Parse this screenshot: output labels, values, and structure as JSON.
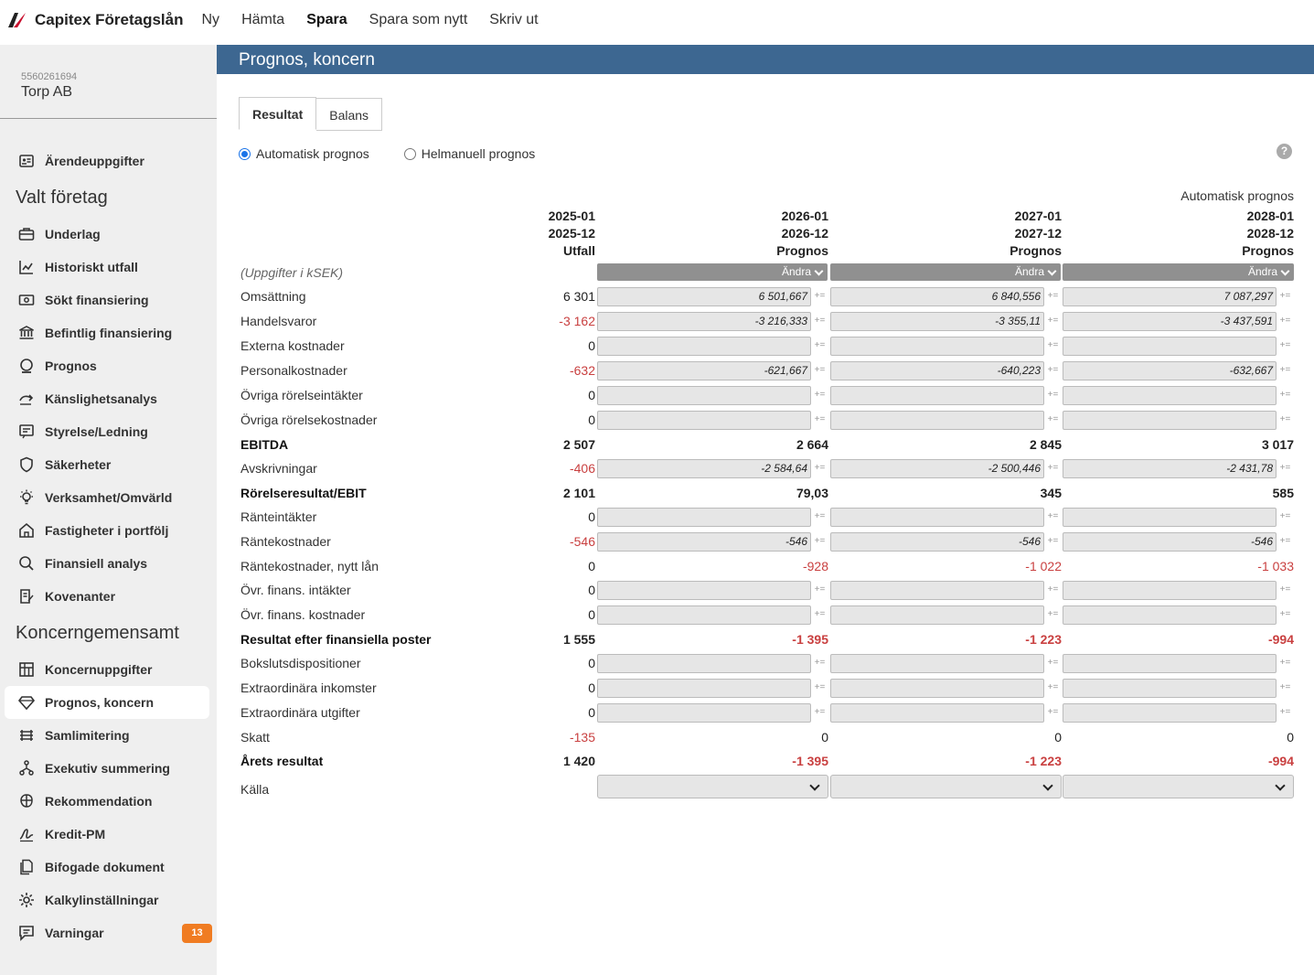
{
  "app": {
    "brand": "Capitex Företagslån",
    "menu": [
      "Ny",
      "Hämta",
      "Spara",
      "Spara som nytt",
      "Skriv ut"
    ]
  },
  "company": {
    "orgnr": "5560261694",
    "name": "Torp AB"
  },
  "sidebar": {
    "first": {
      "label": "Ärendeuppgifter",
      "icon": "id-card-icon"
    },
    "section1": "Valt företag",
    "group1": [
      {
        "label": "Underlag",
        "icon": "briefcase-icon"
      },
      {
        "label": "Historiskt utfall",
        "icon": "chart-icon"
      },
      {
        "label": "Sökt finansiering",
        "icon": "money-icon"
      },
      {
        "label": "Befintlig finansiering",
        "icon": "bank-icon"
      },
      {
        "label": "Prognos",
        "icon": "crystal-ball-icon"
      },
      {
        "label": "Känslighetsanalys",
        "icon": "arrow-icon"
      },
      {
        "label": "Styrelse/Ledning",
        "icon": "board-icon"
      },
      {
        "label": "Säkerheter",
        "icon": "shield-icon"
      },
      {
        "label": "Verksamhet/Omvärld",
        "icon": "bulb-icon"
      },
      {
        "label": "Fastigheter i portfölj",
        "icon": "house-icon"
      },
      {
        "label": "Finansiell analys",
        "icon": "search-money-icon"
      },
      {
        "label": "Kovenanter",
        "icon": "document-pen-icon"
      }
    ],
    "section2": "Koncerngemensamt",
    "group2": [
      {
        "label": "Koncernuppgifter",
        "icon": "grid-icon"
      },
      {
        "label": "Prognos, koncern",
        "icon": "diamond-icon",
        "active": true
      },
      {
        "label": "Samlimitering",
        "icon": "stack-icon"
      },
      {
        "label": "Exekutiv summering",
        "icon": "hierarchy-icon"
      },
      {
        "label": "Rekommendation",
        "icon": "brain-icon"
      },
      {
        "label": "Kredit-PM",
        "icon": "signature-icon"
      },
      {
        "label": "Bifogade dokument",
        "icon": "files-icon"
      },
      {
        "label": "Kalkylinställningar",
        "icon": "gear-icon"
      },
      {
        "label": "Varningar",
        "icon": "warning-message-icon",
        "badge": "13"
      }
    ]
  },
  "page": {
    "title": "Prognos, koncern",
    "tabs": [
      "Resultat",
      "Balans"
    ],
    "radio_auto": "Automatisk prognos",
    "radio_manual": "Helmanuell prognos",
    "help": "?",
    "auto_label": "Automatisk prognos",
    "unit": "(Uppgifter i kSEK)",
    "change_label": "Ändra",
    "source_label": "Källa"
  },
  "columns": [
    {
      "start": "2025-01",
      "end": "2025-12",
      "type": "Utfall"
    },
    {
      "start": "2026-01",
      "end": "2026-12",
      "type": "Prognos"
    },
    {
      "start": "2027-01",
      "end": "2027-12",
      "type": "Prognos"
    },
    {
      "start": "2028-01",
      "end": "2028-12",
      "type": "Prognos"
    }
  ],
  "rows": [
    {
      "label": "Omsättning",
      "kind": "input",
      "actual": "6 301",
      "f": [
        "6 501,667",
        "6 840,556",
        "7 087,297"
      ]
    },
    {
      "label": "Handelsvaror",
      "kind": "input",
      "actual": "-3 162",
      "neg": true,
      "f": [
        "-3 216,333",
        "-3 355,11",
        "-3 437,591"
      ]
    },
    {
      "label": "Externa kostnader",
      "kind": "input",
      "actual": "0",
      "f": [
        "",
        "",
        ""
      ]
    },
    {
      "label": "Personalkostnader",
      "kind": "input",
      "actual": "-632",
      "neg": true,
      "f": [
        "-621,667",
        "-640,223",
        "-632,667"
      ]
    },
    {
      "label": "Övriga rörelseintäkter",
      "kind": "input",
      "actual": "0",
      "f": [
        "",
        "",
        ""
      ]
    },
    {
      "label": "Övriga rörelsekostnader",
      "kind": "input",
      "actual": "0",
      "f": [
        "",
        "",
        ""
      ]
    },
    {
      "label": "EBITDA",
      "kind": "sum",
      "actual": "2 507",
      "f": [
        "2 664",
        "2 845",
        "3 017"
      ]
    },
    {
      "label": "Avskrivningar",
      "kind": "input",
      "actual": "-406",
      "neg": true,
      "f": [
        "-2 584,64",
        "-2 500,446",
        "-2 431,78"
      ]
    },
    {
      "label": "Rörelseresultat/EBIT",
      "kind": "sum",
      "actual": "2 101",
      "f": [
        "79,03",
        "345",
        "585"
      ]
    },
    {
      "label": "Ränteintäkter",
      "kind": "input",
      "actual": "0",
      "f": [
        "",
        "",
        ""
      ]
    },
    {
      "label": "Räntekostnader",
      "kind": "input",
      "actual": "-546",
      "neg": true,
      "f": [
        "-546",
        "-546",
        "-546"
      ]
    },
    {
      "label": "Räntekostnader, nytt lån",
      "kind": "text",
      "actual": "0",
      "f": [
        "-928",
        "-1 022",
        "-1 033"
      ],
      "fneg": true
    },
    {
      "label": "Övr. finans. intäkter",
      "kind": "input",
      "actual": "0",
      "f": [
        "",
        "",
        ""
      ]
    },
    {
      "label": "Övr. finans. kostnader",
      "kind": "input",
      "actual": "0",
      "f": [
        "",
        "",
        ""
      ]
    },
    {
      "label": "Resultat efter finansiella poster",
      "kind": "sum",
      "actual": "1 555",
      "f": [
        "-1 395",
        "-1 223",
        "-994"
      ],
      "fneg": true
    },
    {
      "label": "Bokslutsdispositioner",
      "kind": "input",
      "actual": "0",
      "f": [
        "",
        "",
        ""
      ]
    },
    {
      "label": "Extraordinära inkomster",
      "kind": "input",
      "actual": "0",
      "f": [
        "",
        "",
        ""
      ]
    },
    {
      "label": "Extraordinära utgifter",
      "kind": "input",
      "actual": "0",
      "f": [
        "",
        "",
        ""
      ]
    },
    {
      "label": "Skatt",
      "kind": "text",
      "actual": "-135",
      "neg": true,
      "f": [
        "0",
        "0",
        "0"
      ]
    },
    {
      "label": "Årets resultat",
      "kind": "sum",
      "actual": "1 420",
      "f": [
        "-1 395",
        "-1 223",
        "-994"
      ],
      "fneg": true
    }
  ],
  "colors": {
    "header": "#3d6791",
    "negative": "#c94040",
    "badge": "#f07c22"
  }
}
